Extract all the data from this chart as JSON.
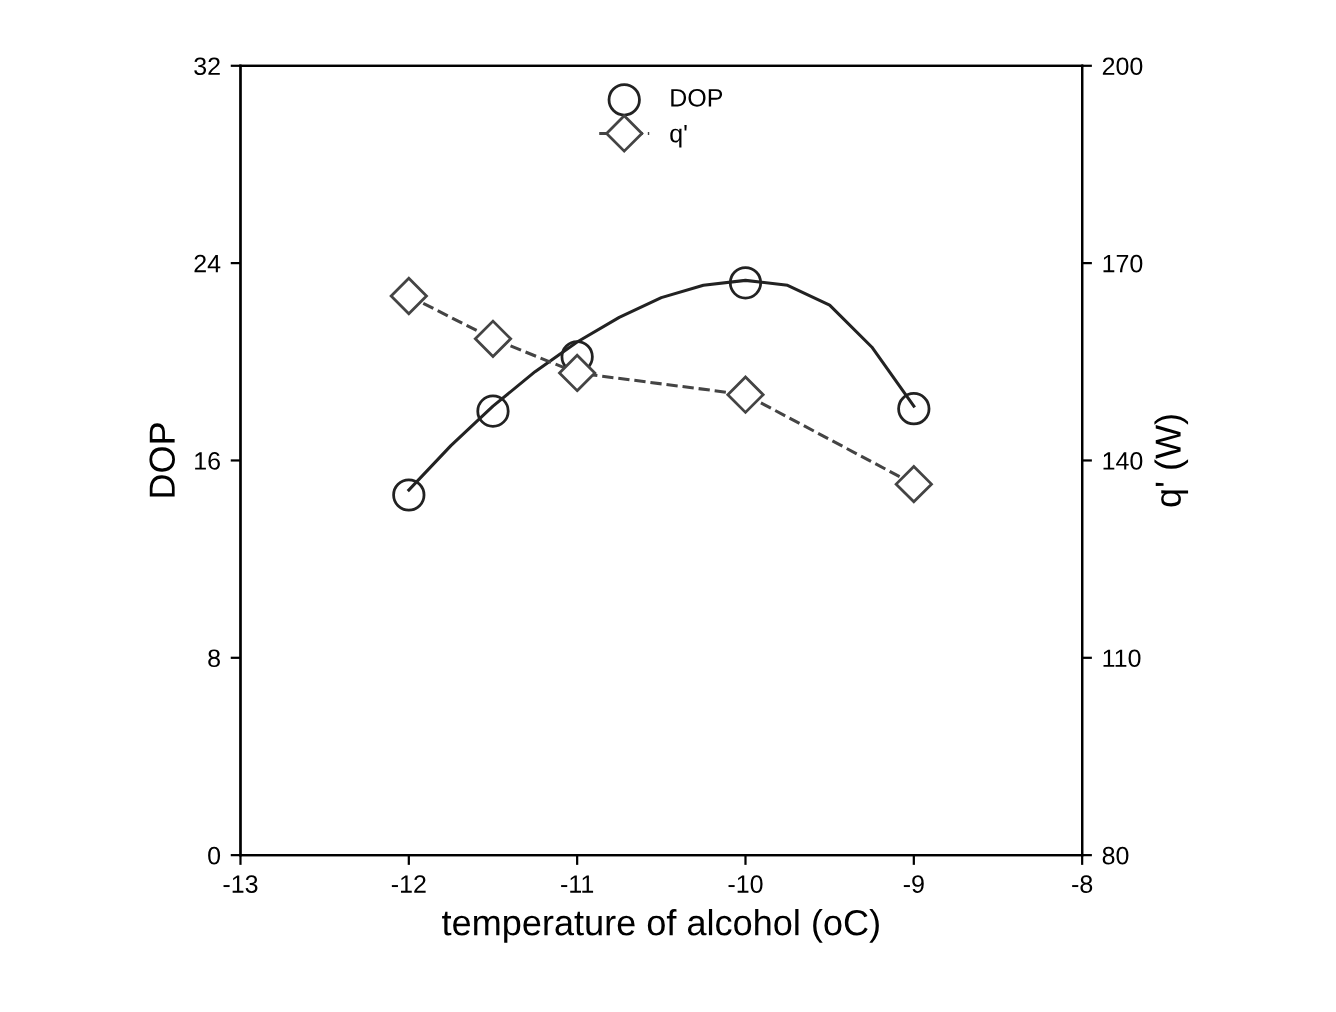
{
  "chart_data": {
    "type": "scatter",
    "xlabel": "temperature of alcohol (oC)",
    "ylabel": "DOP",
    "y2label": "q' (W)",
    "xlim": [
      -13,
      -8
    ],
    "xticks": [
      -13,
      -12,
      -11,
      -10,
      -9,
      -8
    ],
    "ylim": [
      0,
      32
    ],
    "yticks": [
      0,
      8,
      16,
      24,
      32
    ],
    "y2lim": [
      80,
      200
    ],
    "y2ticks": [
      80,
      110,
      140,
      170,
      200
    ],
    "legend": "top",
    "grid": false,
    "series": [
      {
        "name": "DOP",
        "marker": "circle",
        "color": "#222222",
        "x": [
          -12,
          -11.5,
          -11,
          -10,
          -9
        ],
        "values": [
          14.6,
          18.0,
          20.2,
          23.2,
          18.1
        ]
      },
      {
        "type": "line",
        "marker": "none",
        "line_style": "solid",
        "color": "#222222",
        "x": [
          -12,
          -11.75,
          -11.5,
          -11.25,
          -11,
          -10.75,
          -10.5,
          -10.25,
          -10,
          -9.75,
          -9.5,
          -9.25,
          -9
        ],
        "values": [
          14.8,
          16.6,
          18.2,
          19.6,
          20.8,
          21.8,
          22.6,
          23.1,
          23.3,
          23.1,
          22.3,
          20.6,
          18.2
        ]
      },
      {
        "name": "q'",
        "type": "line",
        "axis": "y2",
        "marker": "diamond",
        "line_style": "dashed",
        "color": "#444444",
        "x": [
          -12,
          -11.5,
          -11,
          -10,
          -9
        ],
        "values": [
          165,
          158.5,
          153.3,
          150,
          136.4
        ]
      }
    ]
  }
}
